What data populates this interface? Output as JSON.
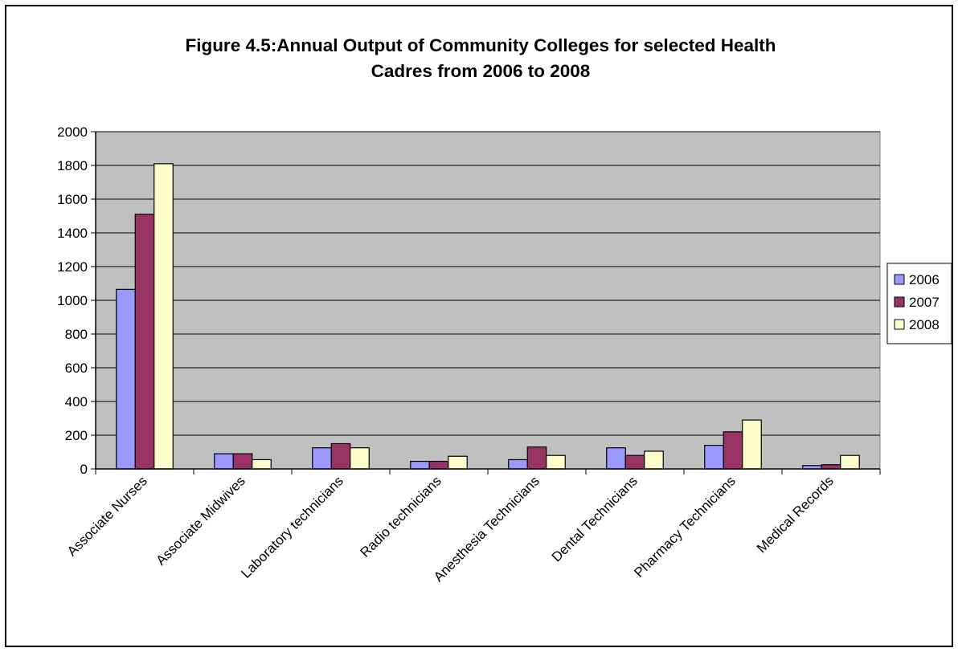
{
  "chart_data": {
    "type": "bar",
    "title": "Figure 4.5:Annual Output of Community Colleges for selected Health Cadres from 2006 to 2008",
    "title_lines": [
      "Figure 4.5:Annual Output of Community Colleges for selected Health",
      "Cadres from 2006 to 2008"
    ],
    "xlabel": "",
    "ylabel": "",
    "categories": [
      "Associate Nurses",
      "Associate Midwives",
      "Laboratory technicians",
      "Radio technicians",
      "Anesthesia Technicians",
      "Dental Technicians",
      "Pharmacy Technicians",
      "Medical Records"
    ],
    "series": [
      {
        "name": "2006",
        "color": "#9999FF",
        "values": [
          1065,
          90,
          125,
          45,
          55,
          125,
          140,
          20
        ]
      },
      {
        "name": "2007",
        "color": "#993366",
        "values": [
          1510,
          90,
          150,
          45,
          130,
          80,
          220,
          25
        ]
      },
      {
        "name": "2008",
        "color": "#FFFFCC",
        "values": [
          1810,
          55,
          125,
          75,
          80,
          105,
          290,
          80
        ]
      }
    ],
    "ylim": [
      0,
      2000
    ],
    "yticks": [
      "0",
      "200",
      "400",
      "600",
      "800",
      "1000",
      "1200",
      "1400",
      "1600",
      "1800",
      "2000"
    ],
    "grid": true,
    "plot_background": "#C0C0C0",
    "legend_position": "right"
  }
}
